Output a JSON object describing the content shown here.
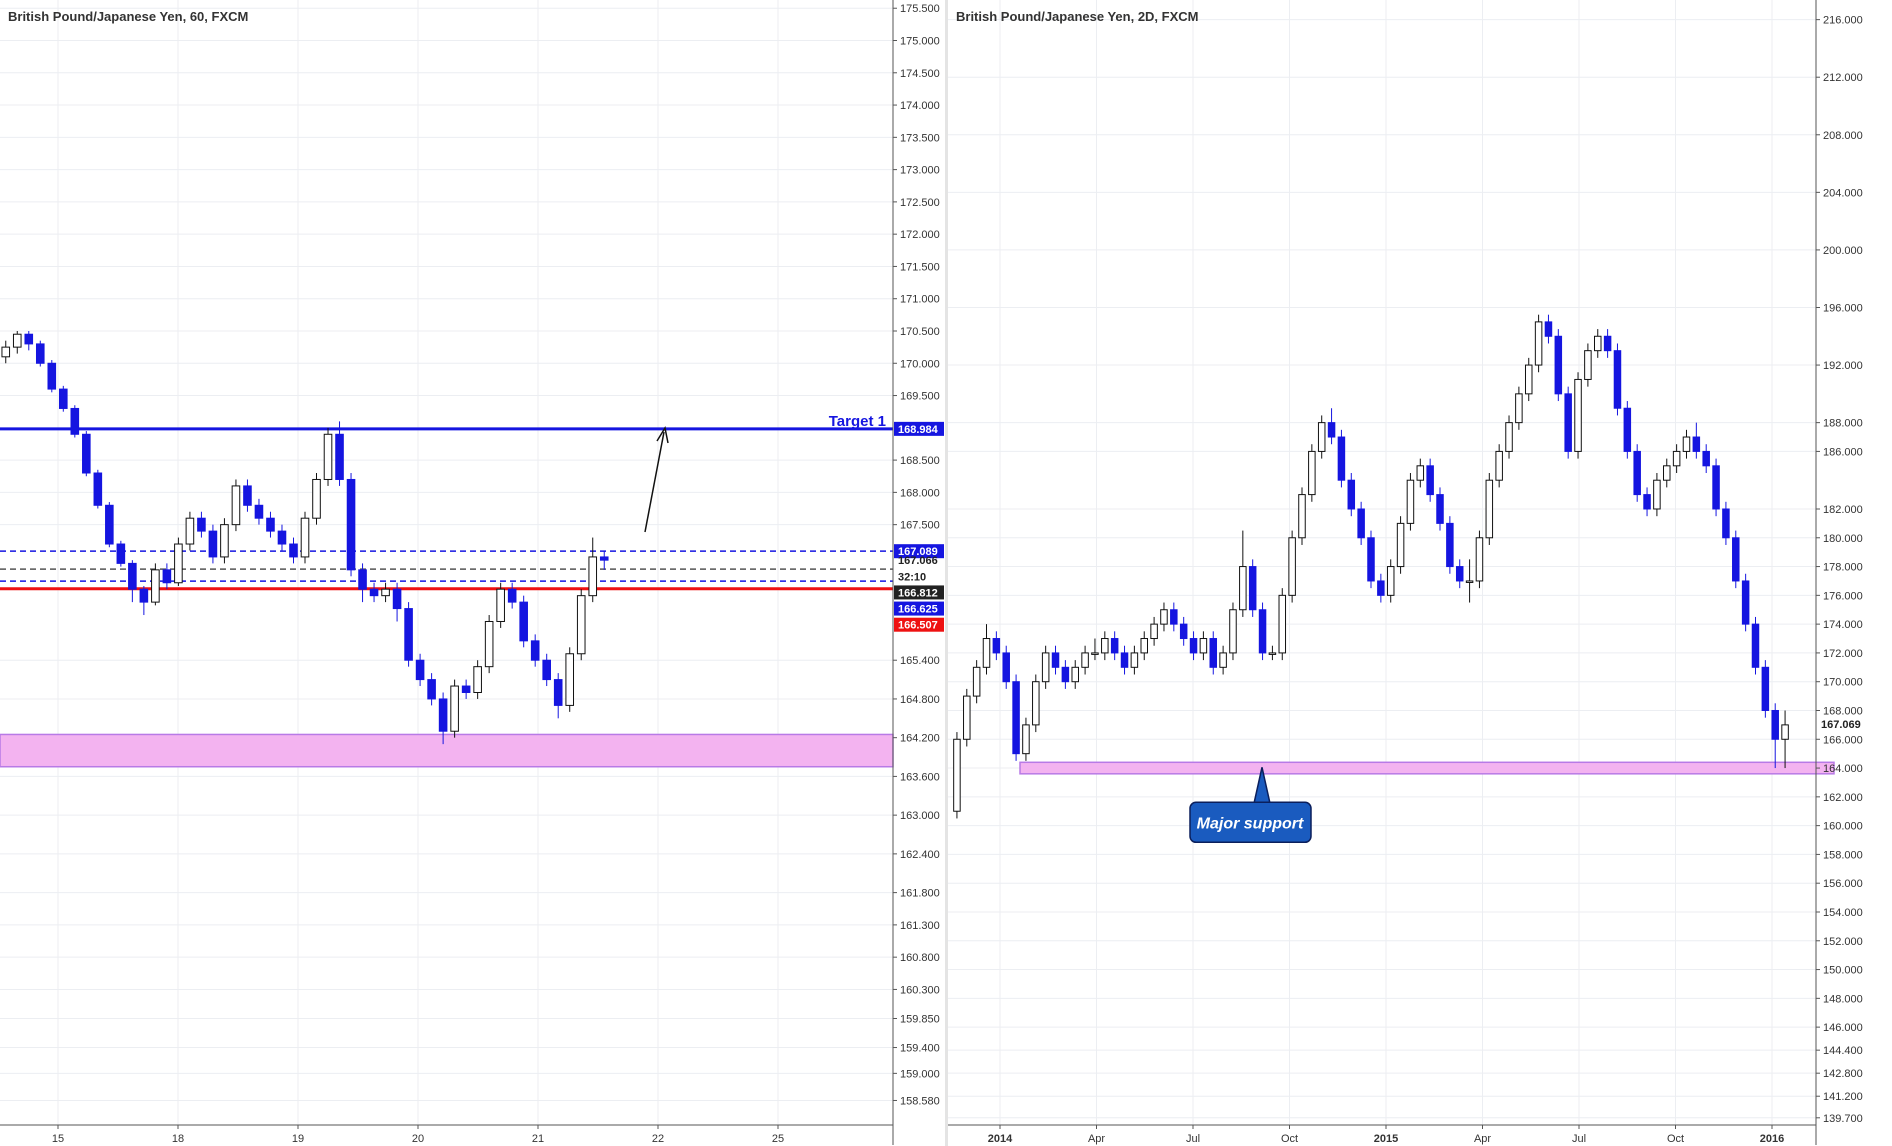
{
  "chart_data": [
    {
      "type": "candlestick",
      "title": "British Pound/Japanese Yen, 60, FXCM",
      "ylim": [
        158.2,
        175.55
      ],
      "y_ticks": [
        175.5,
        175.0,
        174.5,
        174.0,
        173.5,
        173.0,
        172.5,
        172.0,
        171.5,
        171.0,
        170.5,
        170.0,
        169.5,
        168.5,
        168.0,
        167.5,
        165.4,
        164.8,
        164.2,
        163.6,
        163.0,
        162.4,
        161.8,
        161.3,
        160.8,
        160.3,
        159.85,
        159.4,
        159.0,
        158.58
      ],
      "y_tick_labels": [
        "175.500",
        "175.000",
        "174.500",
        "174.000",
        "173.500",
        "173.000",
        "172.500",
        "172.000",
        "171.500",
        "171.000",
        "170.500",
        "170.000",
        "169.500",
        "168.500",
        "168.000",
        "167.500",
        "165.400",
        "164.800",
        "164.200",
        "163.600",
        "163.000",
        "162.400",
        "161.800",
        "161.300",
        "160.800",
        "160.300",
        "159.850",
        "159.400",
        "159.000",
        "158.580"
      ],
      "x_ticks": [
        "15",
        "18",
        "19",
        "20",
        "21",
        "22",
        "25"
      ],
      "price_tags": [
        {
          "label": "168.984",
          "value": 168.984,
          "color": "#1515e0"
        },
        {
          "label": "167.089",
          "value": 167.089,
          "color": "#1515e0"
        },
        {
          "label": "167.066",
          "value": 166.95,
          "color": "none"
        },
        {
          "label": "32:10",
          "value": 166.7,
          "color": "none"
        },
        {
          "label": "166.812",
          "value": 166.45,
          "color": "#222222"
        },
        {
          "label": "166.625",
          "value": 166.2,
          "color": "#1515e0"
        },
        {
          "label": "166.507",
          "value": 165.95,
          "color": "#ee1111"
        }
      ],
      "horizontal_lines": [
        {
          "value": 168.984,
          "color": "#1515e0",
          "style": "solid"
        },
        {
          "value": 167.089,
          "color": "#1515e0",
          "style": "dashed"
        },
        {
          "value": 166.812,
          "color": "#555555",
          "style": "dashed"
        },
        {
          "value": 166.625,
          "color": "#1515e0",
          "style": "dashed"
        },
        {
          "value": 166.507,
          "color": "#ee1111",
          "style": "solid"
        }
      ],
      "zone": {
        "from": 163.75,
        "to": 164.25,
        "color": "#f3b3f0"
      },
      "annotation": "Target 1",
      "series": {
        "open": [
          170.1,
          170.25,
          170.45,
          170.3,
          170.0,
          169.6,
          169.3,
          168.9,
          168.3,
          167.8,
          167.2,
          166.9,
          166.5,
          166.3,
          166.8,
          166.6,
          167.2,
          167.6,
          167.4,
          167.0,
          167.5,
          168.1,
          167.8,
          167.6,
          167.4,
          167.2,
          167.0,
          167.6,
          168.2,
          168.9,
          168.2,
          166.8,
          166.5,
          166.4,
          166.5,
          166.2,
          165.4,
          165.1,
          164.8,
          164.3,
          165.0,
          164.9,
          165.3,
          166.0,
          166.5,
          166.3,
          165.7,
          165.4,
          165.1,
          164.7,
          165.5,
          166.4,
          167.0
        ],
        "close": [
          170.25,
          170.45,
          170.3,
          170.0,
          169.6,
          169.3,
          168.9,
          168.3,
          167.8,
          167.2,
          166.9,
          166.5,
          166.3,
          166.8,
          166.6,
          167.2,
          167.6,
          167.4,
          167.0,
          167.5,
          168.1,
          167.8,
          167.6,
          167.4,
          167.2,
          167.0,
          167.6,
          168.2,
          168.9,
          168.2,
          166.8,
          166.5,
          166.4,
          166.5,
          166.2,
          165.4,
          165.1,
          164.8,
          164.3,
          165.0,
          164.9,
          165.3,
          166.0,
          166.5,
          166.3,
          165.7,
          165.4,
          165.1,
          164.7,
          165.5,
          166.4,
          167.0,
          166.95
        ],
        "high": [
          170.35,
          170.5,
          170.5,
          170.35,
          170.05,
          169.65,
          169.35,
          168.95,
          168.35,
          167.85,
          167.25,
          166.95,
          166.55,
          166.9,
          166.9,
          167.3,
          167.7,
          167.7,
          167.5,
          167.6,
          168.2,
          168.2,
          167.9,
          167.7,
          167.5,
          167.3,
          167.7,
          168.3,
          169.0,
          169.1,
          168.3,
          166.9,
          166.6,
          166.6,
          166.6,
          166.3,
          165.5,
          165.2,
          164.9,
          165.1,
          165.1,
          165.4,
          166.1,
          166.6,
          166.6,
          166.4,
          165.8,
          165.5,
          165.2,
          165.6,
          166.5,
          167.3,
          167.1
        ],
        "low": [
          170.0,
          170.15,
          170.2,
          169.95,
          169.55,
          169.25,
          168.85,
          168.25,
          167.75,
          167.15,
          166.85,
          166.3,
          166.1,
          166.25,
          166.5,
          166.55,
          167.1,
          167.3,
          166.9,
          166.9,
          167.4,
          167.7,
          167.5,
          167.3,
          167.1,
          166.9,
          166.9,
          167.5,
          168.1,
          168.1,
          166.7,
          166.3,
          166.3,
          166.3,
          166.0,
          165.3,
          165.0,
          164.7,
          164.1,
          164.2,
          164.8,
          164.8,
          165.2,
          165.9,
          166.2,
          165.6,
          165.3,
          165.0,
          164.5,
          164.6,
          165.4,
          166.3,
          166.8
        ]
      }
    },
    {
      "type": "candlestick",
      "title": "British Pound/Japanese Yen, 2D, FXCM",
      "ylim": [
        139.2,
        216.6
      ],
      "y_ticks": [
        216,
        212,
        208,
        204,
        200,
        196,
        192,
        188,
        186,
        182,
        180,
        178,
        176,
        174,
        172,
        170,
        168,
        166,
        164,
        162,
        160,
        158,
        156,
        154,
        152,
        150,
        148,
        146,
        144.4,
        142.8,
        141.2,
        139.7
      ],
      "y_tick_labels": [
        "216.000",
        "212.000",
        "208.000",
        "204.000",
        "200.000",
        "196.000",
        "192.000",
        "188.000",
        "186.000",
        "182.000",
        "180.000",
        "178.000",
        "176.000",
        "174.000",
        "172.000",
        "170.000",
        "168.000",
        "166.000",
        "164.000",
        "162.000",
        "160.000",
        "158.000",
        "156.000",
        "154.000",
        "152.000",
        "150.000",
        "148.000",
        "146.000",
        "144.400",
        "142.800",
        "141.200",
        "139.700"
      ],
      "x_ticks": [
        "2014",
        "Apr",
        "Jul",
        "Oct",
        "2015",
        "Apr",
        "Jul",
        "Oct",
        "2016"
      ],
      "price_tags": [
        {
          "label": "167.069",
          "value": 167.069,
          "color": "none"
        }
      ],
      "zone": {
        "from": 163.6,
        "to": 164.4,
        "color": "#f3b3f0"
      },
      "callout": "Major support",
      "series": {
        "open": [
          161,
          166,
          169,
          171,
          173,
          172,
          170,
          165,
          167,
          170,
          172,
          171,
          170,
          171,
          172,
          172,
          173,
          172,
          171,
          172,
          173,
          174,
          175,
          174,
          173,
          172,
          173,
          171,
          172,
          175,
          178,
          175,
          172,
          172,
          176,
          180,
          183,
          186,
          188,
          187,
          184,
          182,
          180,
          177,
          176,
          178,
          181,
          184,
          185,
          183,
          181,
          178,
          177,
          177,
          180,
          184,
          186,
          188,
          190,
          192,
          195,
          194,
          190,
          186,
          191,
          193,
          194,
          193,
          189,
          186,
          183,
          182,
          184,
          185,
          186,
          187,
          186,
          185,
          182,
          180,
          177,
          174,
          171,
          168,
          166
        ],
        "close": [
          166,
          169,
          171,
          173,
          172,
          170,
          165,
          167,
          170,
          172,
          171,
          170,
          171,
          172,
          172,
          173,
          172,
          171,
          172,
          173,
          174,
          175,
          174,
          173,
          172,
          173,
          171,
          172,
          175,
          178,
          175,
          172,
          172,
          176,
          180,
          183,
          186,
          188,
          187,
          184,
          182,
          180,
          177,
          176,
          178,
          181,
          184,
          185,
          183,
          181,
          178,
          177,
          177,
          180,
          184,
          186,
          188,
          190,
          192,
          195,
          194,
          190,
          186,
          191,
          193,
          194,
          193,
          189,
          186,
          183,
          182,
          184,
          185,
          186,
          187,
          186,
          185,
          182,
          180,
          177,
          174,
          171,
          168,
          166,
          167
        ],
        "high": [
          166.5,
          169.5,
          171.5,
          174,
          173.5,
          172.5,
          170.5,
          167.5,
          170.5,
          172.5,
          172.5,
          171.5,
          171.5,
          172.5,
          173,
          173.5,
          173.5,
          172.5,
          172.5,
          173.5,
          174.5,
          175.5,
          175.5,
          174.5,
          173.5,
          173.5,
          173.5,
          172.5,
          175.5,
          180.5,
          178.5,
          175.5,
          172.5,
          176.5,
          180.5,
          183.5,
          186.5,
          188.5,
          189,
          187.5,
          184.5,
          182.5,
          180.5,
          177.5,
          178.5,
          181.5,
          184.5,
          185.5,
          185.5,
          183.5,
          181.5,
          178.5,
          178.5,
          180.5,
          184.5,
          186.5,
          188.5,
          190.5,
          192.5,
          195.5,
          195.5,
          194.5,
          190.5,
          191.5,
          193.5,
          194.5,
          194.5,
          193.5,
          189.5,
          186.5,
          183.5,
          184.5,
          185.5,
          186.5,
          187.5,
          188,
          186.5,
          185.5,
          182.5,
          180.5,
          177.5,
          174.5,
          171.5,
          168.5,
          168
        ],
        "low": [
          160.5,
          165.5,
          168.5,
          170.5,
          171.5,
          169.5,
          164.5,
          164.5,
          166.5,
          169.5,
          170.5,
          169.5,
          169.5,
          170.5,
          171.5,
          171.5,
          171.5,
          170.5,
          170.5,
          171.5,
          172.5,
          173.5,
          173.5,
          172.5,
          171.5,
          171.5,
          170.5,
          170.5,
          171.5,
          174.5,
          174.5,
          171.5,
          171.5,
          171.5,
          175.5,
          179.5,
          182.5,
          185.5,
          186.5,
          183.5,
          181.5,
          179.5,
          176.5,
          175.5,
          175.5,
          177.5,
          180.5,
          183.5,
          182.5,
          180.5,
          177.5,
          176.5,
          175.5,
          176.5,
          179.5,
          183.5,
          185.5,
          187.5,
          189.5,
          191.5,
          193.5,
          189.5,
          185.5,
          185.5,
          190.5,
          192.5,
          192.5,
          188.5,
          185.5,
          182.5,
          181.5,
          181.5,
          183.5,
          184.5,
          185.5,
          185.5,
          184.5,
          181.5,
          179.5,
          176.5,
          173.5,
          170.5,
          167.5,
          164,
          164
        ]
      }
    }
  ]
}
